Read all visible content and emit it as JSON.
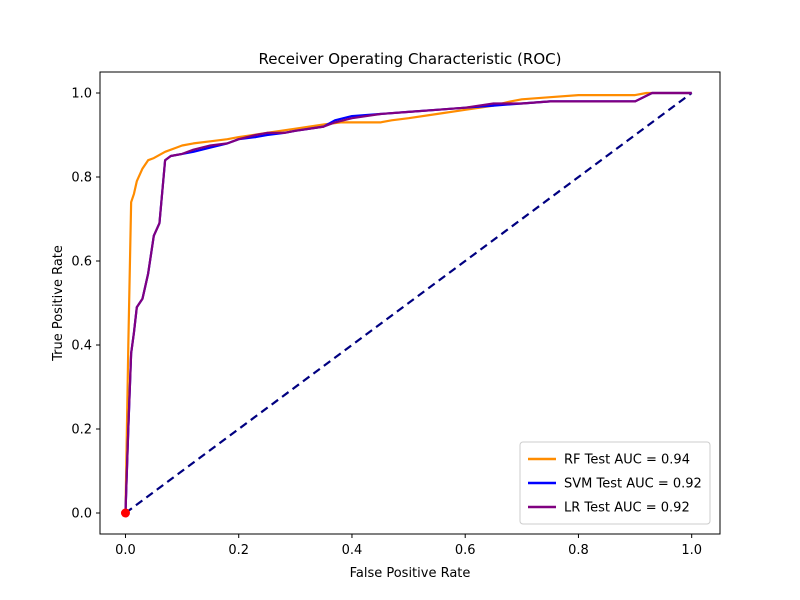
{
  "chart_data": {
    "type": "line",
    "title": "Receiver Operating Characteristic (ROC)",
    "xlabel": "False Positive Rate",
    "ylabel": "True Positive Rate",
    "xlim": [
      -0.045,
      1.05
    ],
    "ylim": [
      -0.05,
      1.05
    ],
    "xticks": [
      0.0,
      0.2,
      0.4,
      0.6,
      0.8,
      1.0
    ],
    "yticks": [
      0.0,
      0.2,
      0.4,
      0.6,
      0.8,
      1.0
    ],
    "tick_labels_x": [
      "0.0",
      "0.2",
      "0.4",
      "0.6",
      "0.8",
      "1.0"
    ],
    "tick_labels_y": [
      "0.0",
      "0.2",
      "0.4",
      "0.6",
      "0.8",
      "1.0"
    ],
    "grid": false,
    "legend_position": "lower-right",
    "series": [
      {
        "name": "RF Test AUC = 0.94",
        "color": "#ff8c00",
        "style": "solid",
        "x": [
          0.0,
          0.005,
          0.01,
          0.015,
          0.02,
          0.03,
          0.04,
          0.05,
          0.07,
          0.09,
          0.1,
          0.12,
          0.15,
          0.18,
          0.2,
          0.25,
          0.3,
          0.35,
          0.38,
          0.4,
          0.45,
          0.47,
          0.5,
          0.55,
          0.6,
          0.65,
          0.68,
          0.7,
          0.75,
          0.8,
          0.85,
          0.9,
          0.92,
          0.95,
          1.0
        ],
        "y": [
          0.0,
          0.4,
          0.74,
          0.76,
          0.79,
          0.82,
          0.84,
          0.845,
          0.86,
          0.87,
          0.875,
          0.88,
          0.885,
          0.89,
          0.895,
          0.905,
          0.915,
          0.925,
          0.93,
          0.93,
          0.93,
          0.935,
          0.94,
          0.95,
          0.96,
          0.97,
          0.98,
          0.985,
          0.99,
          0.995,
          0.995,
          0.995,
          1.0,
          1.0,
          1.0
        ]
      },
      {
        "name": "SVM Test AUC = 0.92",
        "color": "#0000ff",
        "style": "solid",
        "x": [
          0.0,
          0.005,
          0.01,
          0.015,
          0.02,
          0.03,
          0.035,
          0.04,
          0.05,
          0.06,
          0.07,
          0.08,
          0.1,
          0.12,
          0.15,
          0.18,
          0.2,
          0.23,
          0.25,
          0.28,
          0.3,
          0.35,
          0.37,
          0.4,
          0.45,
          0.5,
          0.55,
          0.6,
          0.65,
          0.7,
          0.75,
          0.8,
          0.85,
          0.9,
          0.93,
          0.95,
          1.0
        ],
        "y": [
          0.0,
          0.2,
          0.38,
          0.43,
          0.49,
          0.51,
          0.54,
          0.57,
          0.66,
          0.69,
          0.84,
          0.85,
          0.855,
          0.86,
          0.87,
          0.88,
          0.89,
          0.895,
          0.9,
          0.905,
          0.91,
          0.92,
          0.935,
          0.945,
          0.95,
          0.955,
          0.96,
          0.965,
          0.97,
          0.975,
          0.98,
          0.98,
          0.98,
          0.98,
          1.0,
          1.0,
          1.0
        ]
      },
      {
        "name": "LR Test AUC = 0.92",
        "color": "#800080",
        "style": "solid",
        "x": [
          0.0,
          0.005,
          0.01,
          0.015,
          0.02,
          0.03,
          0.035,
          0.04,
          0.05,
          0.06,
          0.07,
          0.08,
          0.1,
          0.12,
          0.15,
          0.18,
          0.2,
          0.23,
          0.25,
          0.28,
          0.3,
          0.35,
          0.37,
          0.4,
          0.45,
          0.5,
          0.55,
          0.6,
          0.65,
          0.7,
          0.75,
          0.8,
          0.85,
          0.9,
          0.93,
          0.95,
          1.0
        ],
        "y": [
          0.0,
          0.2,
          0.38,
          0.43,
          0.49,
          0.51,
          0.54,
          0.57,
          0.66,
          0.69,
          0.84,
          0.85,
          0.855,
          0.865,
          0.875,
          0.88,
          0.89,
          0.9,
          0.905,
          0.905,
          0.91,
          0.92,
          0.93,
          0.94,
          0.95,
          0.955,
          0.96,
          0.965,
          0.975,
          0.975,
          0.98,
          0.98,
          0.98,
          0.98,
          1.0,
          1.0,
          1.0
        ]
      },
      {
        "name": "",
        "color": "#000080",
        "style": "dashed",
        "x": [
          0.0,
          1.0
        ],
        "y": [
          0.0,
          1.0
        ]
      }
    ],
    "points": [
      {
        "x": 0.0,
        "y": 0.0,
        "color": "#ff0000"
      }
    ]
  }
}
